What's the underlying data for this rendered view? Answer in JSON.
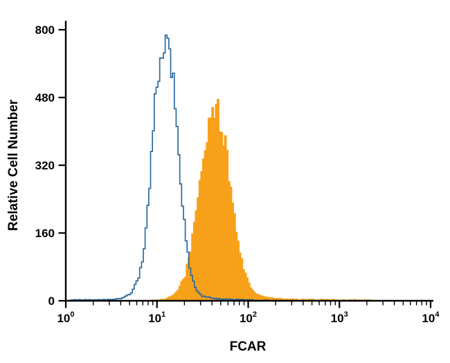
{
  "chart_data": {
    "type": "area",
    "subtype": "flow-cytometry-overlay-histogram",
    "title": "",
    "xlabel": "FCAR",
    "ylabel": "Relative Cell Number",
    "x_scale": "log10",
    "x_domain_log10": [
      0,
      4
    ],
    "x_ticks": [
      {
        "base": "10",
        "exp": "0"
      },
      {
        "base": "10",
        "exp": "1"
      },
      {
        "base": "10",
        "exp": "2"
      },
      {
        "base": "10",
        "exp": "3"
      },
      {
        "base": "10",
        "exp": "4"
      }
    ],
    "y_ticks": [
      0,
      160,
      320,
      480,
      800
    ],
    "grid": false,
    "legend": "none",
    "axis_color": "#000000",
    "series": [
      {
        "name": "filled-orange-histogram",
        "style": "filled",
        "stroke": "#f7a11a",
        "fill": "#f7a11a",
        "peak": {
          "x": 42,
          "y": 455
        },
        "points_log10x_y": [
          [
            0.9,
            0
          ],
          [
            1.0,
            2
          ],
          [
            1.1,
            5
          ],
          [
            1.2,
            18
          ],
          [
            1.3,
            60
          ],
          [
            1.35,
            110
          ],
          [
            1.4,
            180
          ],
          [
            1.45,
            258
          ],
          [
            1.5,
            338
          ],
          [
            1.55,
            408
          ],
          [
            1.6,
            450
          ],
          [
            1.65,
            455
          ],
          [
            1.7,
            416
          ],
          [
            1.75,
            348
          ],
          [
            1.8,
            262
          ],
          [
            1.85,
            182
          ],
          [
            1.9,
            114
          ],
          [
            1.95,
            70
          ],
          [
            2.0,
            40
          ],
          [
            2.05,
            22
          ],
          [
            2.1,
            14
          ],
          [
            2.2,
            8
          ],
          [
            2.3,
            6
          ],
          [
            2.4,
            4
          ],
          [
            2.6,
            3
          ],
          [
            2.8,
            3
          ],
          [
            3.0,
            2
          ],
          [
            3.2,
            2
          ],
          [
            3.35,
            1
          ],
          [
            3.4,
            0
          ]
        ]
      },
      {
        "name": "open-blue-histogram",
        "style": "open",
        "stroke": "#2b6a9b",
        "fill": "none",
        "peak": {
          "x": 12,
          "y": 735
        },
        "points_log10x_y": [
          [
            0.05,
            2
          ],
          [
            0.3,
            2
          ],
          [
            0.5,
            3
          ],
          [
            0.6,
            6
          ],
          [
            0.7,
            16
          ],
          [
            0.8,
            60
          ],
          [
            0.85,
            125
          ],
          [
            0.9,
            235
          ],
          [
            0.95,
            400
          ],
          [
            1.0,
            580
          ],
          [
            1.05,
            700
          ],
          [
            1.08,
            735
          ],
          [
            1.12,
            698
          ],
          [
            1.16,
            595
          ],
          [
            1.2,
            445
          ],
          [
            1.25,
            295
          ],
          [
            1.3,
            150
          ],
          [
            1.35,
            78
          ],
          [
            1.4,
            36
          ],
          [
            1.45,
            18
          ],
          [
            1.5,
            10
          ],
          [
            1.6,
            6
          ],
          [
            1.7,
            4
          ],
          [
            1.8,
            3
          ],
          [
            2.0,
            2
          ],
          [
            2.2,
            1
          ],
          [
            2.3,
            0
          ]
        ]
      }
    ]
  }
}
